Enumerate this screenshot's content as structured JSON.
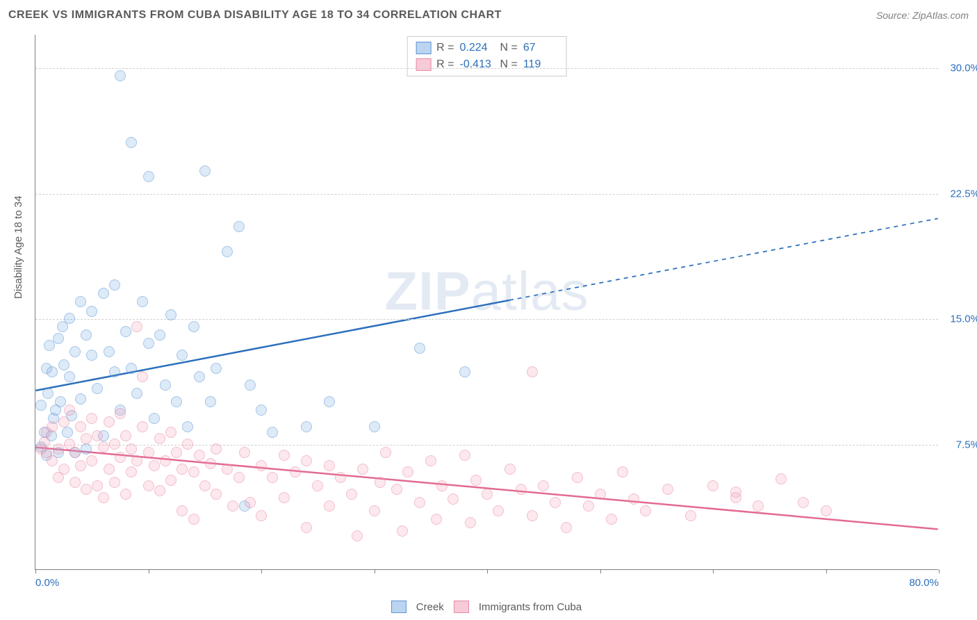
{
  "title": "CREEK VS IMMIGRANTS FROM CUBA DISABILITY AGE 18 TO 34 CORRELATION CHART",
  "source": "Source: ZipAtlas.com",
  "watermark": {
    "part1": "ZIP",
    "part2": "atlas"
  },
  "chart": {
    "type": "scatter",
    "ylabel": "Disability Age 18 to 34",
    "xlim": [
      0,
      80
    ],
    "ylim": [
      0,
      32
    ],
    "yticks": [
      {
        "v": 7.5,
        "label": "7.5%"
      },
      {
        "v": 15.0,
        "label": "15.0%"
      },
      {
        "v": 22.5,
        "label": "22.5%"
      },
      {
        "v": 30.0,
        "label": "30.0%"
      }
    ],
    "xticks_major": [
      0,
      10,
      20,
      30,
      40,
      50,
      60,
      70,
      80
    ],
    "xlabels": [
      {
        "v": 0,
        "label": "0.0%"
      },
      {
        "v": 80,
        "label": "80.0%"
      }
    ],
    "background_color": "#ffffff",
    "grid_color": "#d0d0d0",
    "axis_color": "#808080",
    "marker_radius": 8,
    "label_fontsize": 15,
    "tick_color": "#2c6fbb"
  },
  "series": [
    {
      "id": "a",
      "name": "Creek",
      "color_fill": "rgba(120,170,225,0.45)",
      "color_stroke": "#5a96d6",
      "trend_color": "#2c6fbb",
      "trend_width": 2.5,
      "R": "0.224",
      "N": "67",
      "trend": {
        "x1": 0,
        "y1": 10.7,
        "x2": 80,
        "y2": 21.0,
        "solid_until_x": 42
      },
      "points": [
        [
          0.5,
          7.3
        ],
        [
          0.5,
          9.8
        ],
        [
          0.8,
          8.2
        ],
        [
          1.0,
          12.0
        ],
        [
          1.0,
          6.8
        ],
        [
          1.1,
          10.5
        ],
        [
          1.2,
          13.4
        ],
        [
          1.4,
          8.0
        ],
        [
          1.5,
          11.8
        ],
        [
          1.6,
          9.0
        ],
        [
          1.8,
          9.5
        ],
        [
          2.0,
          13.8
        ],
        [
          2.0,
          7.0
        ],
        [
          2.2,
          10.0
        ],
        [
          2.4,
          14.5
        ],
        [
          2.5,
          12.2
        ],
        [
          2.8,
          8.2
        ],
        [
          3.0,
          11.5
        ],
        [
          3.0,
          15.0
        ],
        [
          3.2,
          9.2
        ],
        [
          3.5,
          13.0
        ],
        [
          3.5,
          7.0
        ],
        [
          4.0,
          16.0
        ],
        [
          4.0,
          10.2
        ],
        [
          4.5,
          14.0
        ],
        [
          4.5,
          7.2
        ],
        [
          5.0,
          12.8
        ],
        [
          5.0,
          15.4
        ],
        [
          5.5,
          10.8
        ],
        [
          6.0,
          16.5
        ],
        [
          6.0,
          8.0
        ],
        [
          6.5,
          13.0
        ],
        [
          7.0,
          11.8
        ],
        [
          7.0,
          17.0
        ],
        [
          7.5,
          9.5
        ],
        [
          7.5,
          29.5
        ],
        [
          8.0,
          14.2
        ],
        [
          8.5,
          12.0
        ],
        [
          8.5,
          25.5
        ],
        [
          9.0,
          10.5
        ],
        [
          9.5,
          16.0
        ],
        [
          10.0,
          13.5
        ],
        [
          10.0,
          23.5
        ],
        [
          10.5,
          9.0
        ],
        [
          11.0,
          14.0
        ],
        [
          11.5,
          11.0
        ],
        [
          12.0,
          15.2
        ],
        [
          12.5,
          10.0
        ],
        [
          13.0,
          12.8
        ],
        [
          13.5,
          8.5
        ],
        [
          14.0,
          14.5
        ],
        [
          14.5,
          11.5
        ],
        [
          15.0,
          23.8
        ],
        [
          15.5,
          10.0
        ],
        [
          16.0,
          12.0
        ],
        [
          17.0,
          19.0
        ],
        [
          18.0,
          20.5
        ],
        [
          18.5,
          3.8
        ],
        [
          19.0,
          11.0
        ],
        [
          20.0,
          9.5
        ],
        [
          21.0,
          8.2
        ],
        [
          24.0,
          8.5
        ],
        [
          26.0,
          10.0
        ],
        [
          30.0,
          8.5
        ],
        [
          34.0,
          13.2
        ],
        [
          38.0,
          11.8
        ]
      ]
    },
    {
      "id": "b",
      "name": "Immigrants from Cuba",
      "color_fill": "rgba(240,150,175,0.40)",
      "color_stroke": "#e88aa5",
      "trend_color": "#e36a91",
      "trend_width": 2.5,
      "R": "-0.413",
      "N": "119",
      "trend": {
        "x1": 0,
        "y1": 7.3,
        "x2": 80,
        "y2": 2.4,
        "solid_until_x": 80
      },
      "points": [
        [
          0.5,
          7.2
        ],
        [
          0.8,
          7.6
        ],
        [
          1.0,
          7.0
        ],
        [
          1.0,
          8.2
        ],
        [
          1.5,
          6.5
        ],
        [
          1.5,
          8.5
        ],
        [
          2.0,
          7.2
        ],
        [
          2.0,
          5.5
        ],
        [
          2.5,
          8.8
        ],
        [
          2.5,
          6.0
        ],
        [
          3.0,
          7.5
        ],
        [
          3.0,
          9.5
        ],
        [
          3.5,
          5.2
        ],
        [
          3.5,
          7.0
        ],
        [
          4.0,
          8.5
        ],
        [
          4.0,
          6.2
        ],
        [
          4.5,
          7.8
        ],
        [
          4.5,
          4.8
        ],
        [
          5.0,
          9.0
        ],
        [
          5.0,
          6.5
        ],
        [
          5.5,
          8.0
        ],
        [
          5.5,
          5.0
        ],
        [
          6.0,
          7.3
        ],
        [
          6.0,
          4.3
        ],
        [
          6.5,
          8.8
        ],
        [
          6.5,
          6.0
        ],
        [
          7.0,
          7.5
        ],
        [
          7.0,
          5.2
        ],
        [
          7.5,
          9.3
        ],
        [
          7.5,
          6.7
        ],
        [
          8.0,
          8.0
        ],
        [
          8.0,
          4.5
        ],
        [
          8.5,
          7.2
        ],
        [
          8.5,
          5.8
        ],
        [
          9.0,
          6.5
        ],
        [
          9.0,
          14.5
        ],
        [
          9.5,
          11.5
        ],
        [
          9.5,
          8.5
        ],
        [
          10.0,
          7.0
        ],
        [
          10.0,
          5.0
        ],
        [
          10.5,
          6.2
        ],
        [
          11.0,
          7.8
        ],
        [
          11.0,
          4.7
        ],
        [
          11.5,
          6.5
        ],
        [
          12.0,
          8.2
        ],
        [
          12.0,
          5.3
        ],
        [
          12.5,
          7.0
        ],
        [
          13.0,
          6.0
        ],
        [
          13.0,
          3.5
        ],
        [
          13.5,
          7.5
        ],
        [
          14.0,
          5.8
        ],
        [
          14.0,
          3.0
        ],
        [
          14.5,
          6.8
        ],
        [
          15.0,
          5.0
        ],
        [
          15.5,
          6.3
        ],
        [
          16.0,
          7.2
        ],
        [
          16.0,
          4.5
        ],
        [
          17.0,
          6.0
        ],
        [
          17.5,
          3.8
        ],
        [
          18.0,
          5.5
        ],
        [
          18.5,
          7.0
        ],
        [
          19.0,
          4.0
        ],
        [
          20.0,
          6.2
        ],
        [
          20.0,
          3.2
        ],
        [
          21.0,
          5.5
        ],
        [
          22.0,
          6.8
        ],
        [
          22.0,
          4.3
        ],
        [
          23.0,
          5.8
        ],
        [
          24.0,
          6.5
        ],
        [
          24.0,
          2.5
        ],
        [
          25.0,
          5.0
        ],
        [
          26.0,
          6.2
        ],
        [
          26.0,
          3.8
        ],
        [
          27.0,
          5.5
        ],
        [
          28.0,
          4.5
        ],
        [
          28.5,
          2.0
        ],
        [
          29.0,
          6.0
        ],
        [
          30.0,
          3.5
        ],
        [
          30.5,
          5.2
        ],
        [
          31.0,
          7.0
        ],
        [
          32.0,
          4.8
        ],
        [
          32.5,
          2.3
        ],
        [
          33.0,
          5.8
        ],
        [
          34.0,
          4.0
        ],
        [
          35.0,
          6.5
        ],
        [
          35.5,
          3.0
        ],
        [
          36.0,
          5.0
        ],
        [
          37.0,
          4.2
        ],
        [
          38.0,
          6.8
        ],
        [
          38.5,
          2.8
        ],
        [
          39.0,
          5.3
        ],
        [
          40.0,
          4.5
        ],
        [
          41.0,
          3.5
        ],
        [
          42.0,
          6.0
        ],
        [
          43.0,
          4.8
        ],
        [
          44.0,
          11.8
        ],
        [
          44.0,
          3.2
        ],
        [
          45.0,
          5.0
        ],
        [
          46.0,
          4.0
        ],
        [
          47.0,
          2.5
        ],
        [
          48.0,
          5.5
        ],
        [
          49.0,
          3.8
        ],
        [
          50.0,
          4.5
        ],
        [
          51.0,
          3.0
        ],
        [
          52.0,
          5.8
        ],
        [
          53.0,
          4.2
        ],
        [
          54.0,
          3.5
        ],
        [
          56.0,
          4.8
        ],
        [
          58.0,
          3.2
        ],
        [
          60.0,
          5.0
        ],
        [
          62.0,
          4.3
        ],
        [
          62.0,
          4.6
        ],
        [
          64.0,
          3.8
        ],
        [
          66.0,
          5.4
        ],
        [
          68.0,
          4.0
        ],
        [
          70.0,
          3.5
        ]
      ]
    }
  ],
  "legend_top": {
    "r_label": "R =",
    "n_label": "N ="
  }
}
